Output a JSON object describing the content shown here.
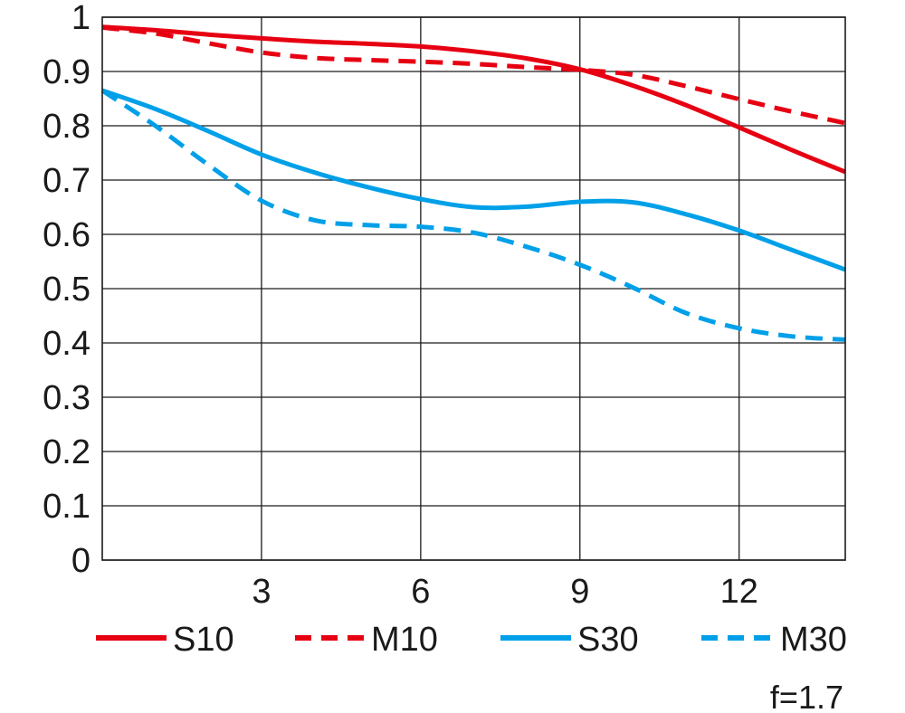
{
  "chart_data": {
    "type": "line",
    "xlim": [
      0,
      14
    ],
    "ylim": [
      0,
      1
    ],
    "x_ticks": [
      "3",
      "6",
      "9",
      "12"
    ],
    "y_ticks": [
      "0",
      "0.1",
      "0.2",
      "0.3",
      "0.4",
      "0.5",
      "0.6",
      "0.7",
      "0.8",
      "0.9",
      "1"
    ],
    "grid": true,
    "legend_position": "bottom",
    "series": [
      {
        "name": "S10",
        "color": "#e60012",
        "dash": "solid",
        "x": [
          0,
          1,
          2,
          3,
          4,
          5,
          6,
          7,
          8,
          9,
          10,
          11,
          12,
          13,
          14
        ],
        "y": [
          0.982,
          0.976,
          0.968,
          0.961,
          0.955,
          0.951,
          0.946,
          0.937,
          0.924,
          0.904,
          0.874,
          0.838,
          0.797,
          0.755,
          0.715
        ]
      },
      {
        "name": "M10",
        "color": "#e60012",
        "dash": "dashed",
        "x": [
          0,
          1,
          2,
          3,
          4,
          5,
          6,
          7,
          8,
          9,
          10,
          11,
          12,
          13,
          14
        ],
        "y": [
          0.981,
          0.97,
          0.952,
          0.935,
          0.925,
          0.921,
          0.918,
          0.914,
          0.908,
          0.903,
          0.894,
          0.873,
          0.849,
          0.826,
          0.805
        ]
      },
      {
        "name": "S30",
        "color": "#00a0e9",
        "dash": "solid",
        "x": [
          0,
          1,
          2,
          3,
          4,
          5,
          6,
          7,
          8,
          9,
          10,
          11,
          12,
          13,
          14
        ],
        "y": [
          0.865,
          0.831,
          0.79,
          0.747,
          0.714,
          0.687,
          0.665,
          0.65,
          0.651,
          0.66,
          0.659,
          0.637,
          0.607,
          0.571,
          0.535
        ]
      },
      {
        "name": "M30",
        "color": "#00a0e9",
        "dash": "dashed",
        "x": [
          0,
          1,
          2,
          3,
          4,
          5,
          6,
          7,
          8,
          9,
          10,
          11,
          12,
          13,
          14
        ],
        "y": [
          0.865,
          0.8,
          0.728,
          0.662,
          0.626,
          0.617,
          0.614,
          0.603,
          0.577,
          0.544,
          0.502,
          0.455,
          0.427,
          0.412,
          0.406
        ]
      }
    ],
    "annotation": "f=1.7"
  }
}
